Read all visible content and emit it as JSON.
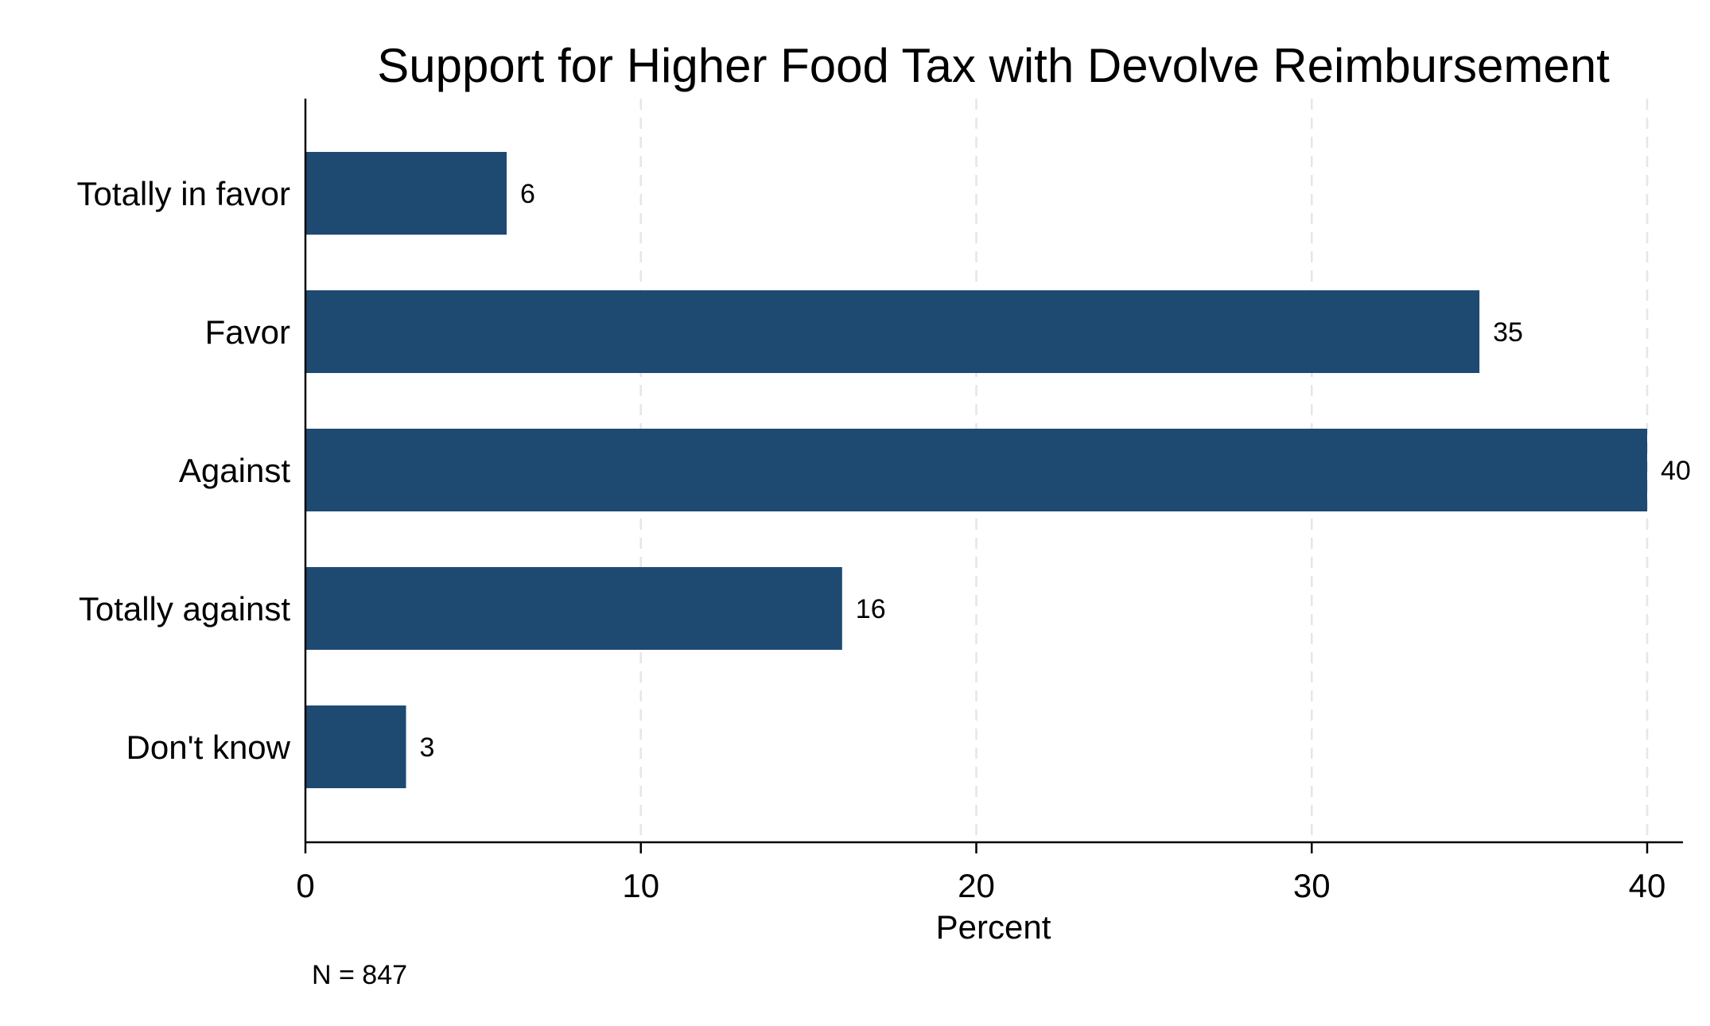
{
  "chart_data": {
    "type": "bar",
    "orientation": "horizontal",
    "title": "Support for Higher Food Tax with Devolve Reimbursement",
    "categories": [
      "Totally in favor",
      "Favor",
      "Against",
      "Totally against",
      "Don't know"
    ],
    "values": [
      6,
      35,
      40,
      16,
      3
    ],
    "value_labels": [
      "6",
      "35",
      "40",
      "16",
      "3"
    ],
    "xlabel": "Percent",
    "ylabel": "",
    "xlim": [
      0,
      41
    ],
    "xticks": [
      0,
      10,
      20,
      30,
      40
    ],
    "xtick_labels": [
      "0",
      "10",
      "20",
      "30",
      "40"
    ],
    "grid": "vertical dashed",
    "bar_color": "#1e4a72",
    "grid_color": "#e6e6e6",
    "note": "N = 847"
  }
}
